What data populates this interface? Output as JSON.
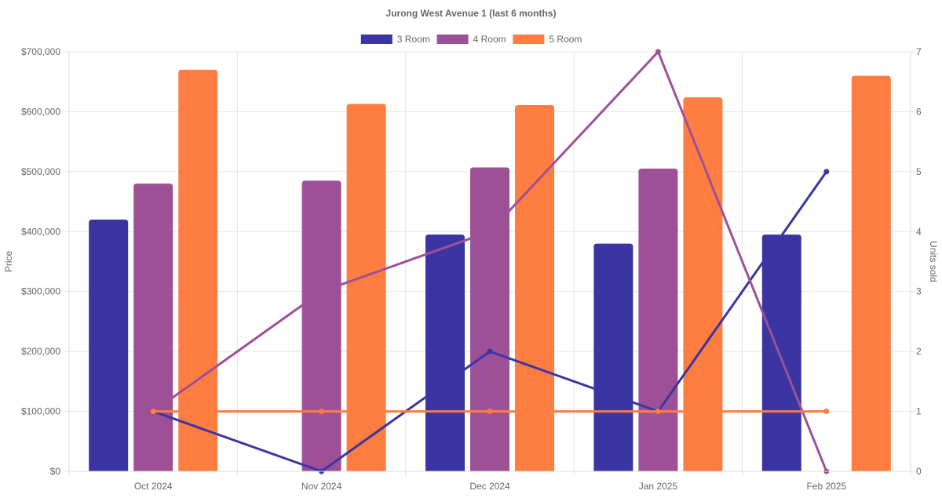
{
  "chart_data": {
    "type": "bar",
    "title": "Jurong West Avenue 1 (last 6 months)",
    "categories": [
      "Oct 2024",
      "Nov 2024",
      "Dec 2024",
      "Jan 2025",
      "Feb 2025"
    ],
    "ylabel": "Price",
    "y2label": "Units sold",
    "ylim": [
      0,
      700000
    ],
    "y2lim": [
      0,
      7
    ],
    "yticks": [
      {
        "value": 0,
        "label": "$0"
      },
      {
        "value": 100000,
        "label": "$100,000"
      },
      {
        "value": 200000,
        "label": "$200,000"
      },
      {
        "value": 300000,
        "label": "$300,000"
      },
      {
        "value": 400000,
        "label": "$400,000"
      },
      {
        "value": 500000,
        "label": "$500,000"
      },
      {
        "value": 600000,
        "label": "$600,000"
      },
      {
        "value": 700000,
        "label": "$700,000"
      }
    ],
    "y2ticks": [
      {
        "value": 0,
        "label": "0"
      },
      {
        "value": 1,
        "label": "1"
      },
      {
        "value": 2,
        "label": "2"
      },
      {
        "value": 3,
        "label": "3"
      },
      {
        "value": 4,
        "label": "4"
      },
      {
        "value": 5,
        "label": "5"
      },
      {
        "value": 6,
        "label": "6"
      },
      {
        "value": 7,
        "label": "7"
      }
    ],
    "legend_position": "top-center",
    "grid": true,
    "series": [
      {
        "name": "3 Room",
        "color": "#3a35a2",
        "price": [
          420000,
          null,
          395000,
          380000,
          395000
        ],
        "units": [
          1,
          0,
          2,
          1,
          5
        ]
      },
      {
        "name": "4 Room",
        "color": "#9e5097",
        "price": [
          480000,
          485000,
          507000,
          505000,
          null
        ],
        "units": [
          1,
          3,
          4,
          7,
          0
        ]
      },
      {
        "name": "5 Room",
        "color": "#ff7d40",
        "price": [
          670000,
          613000,
          611000,
          624000,
          660000
        ],
        "units": [
          1,
          1,
          1,
          1,
          1
        ]
      }
    ]
  }
}
